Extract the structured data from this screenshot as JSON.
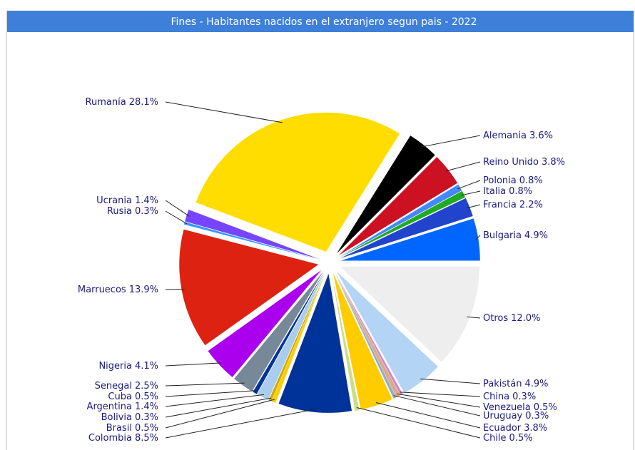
{
  "chart_data": {
    "type": "pie",
    "title": "Fines - Habitantes nacidos en el extranjero segun pais - 2022",
    "categories": [
      "Bulgaria",
      "Francia",
      "Italia",
      "Polonia",
      "Reino Unido",
      "Alemania",
      "Rumanía",
      "Ucrania",
      "Rusia",
      "Marruecos",
      "Nigeria",
      "Senegal",
      "Cuba",
      "Argentina",
      "Bolivia",
      "Brasil",
      "Colombia",
      "Chile",
      "Ecuador",
      "Uruguay",
      "Venezuela",
      "China",
      "Pakistán",
      "Otros"
    ],
    "values": [
      4.9,
      2.2,
      0.8,
      0.8,
      3.8,
      3.6,
      28.1,
      1.4,
      0.3,
      13.9,
      4.1,
      2.5,
      0.5,
      1.4,
      0.3,
      0.5,
      8.5,
      0.5,
      3.8,
      0.3,
      0.5,
      0.3,
      4.9,
      12.0
    ],
    "value_labels": [
      "4.9%",
      "2.2%",
      "0.8%",
      "0.8%",
      "3.8%",
      "3.6%",
      "28.1%",
      "1.4%",
      "0.3%",
      "13.9%",
      "4.1%",
      "2.5%",
      "0.5%",
      "1.4%",
      "0.3%",
      "0.5%",
      "8.5%",
      "0.5%",
      "3.8%",
      "0.3%",
      "0.5%",
      "0.3%",
      "4.9%",
      "12.0%"
    ],
    "colors": [
      "#0066ff",
      "#2244cc",
      "#22aa22",
      "#4488ff",
      "#cc1122",
      "#000000",
      "#ffdd00",
      "#7744ff",
      "#3399ff",
      "#dd2211",
      "#aa00ee",
      "#778899",
      "#003399",
      "#aaccee",
      "#ccaa00",
      "#ffcc00",
      "#003399",
      "#ccdd88",
      "#ffcc00",
      "#88aacc",
      "#ddaa88",
      "#cc88cc",
      "#b3d4f5",
      "#eeeeee"
    ]
  }
}
